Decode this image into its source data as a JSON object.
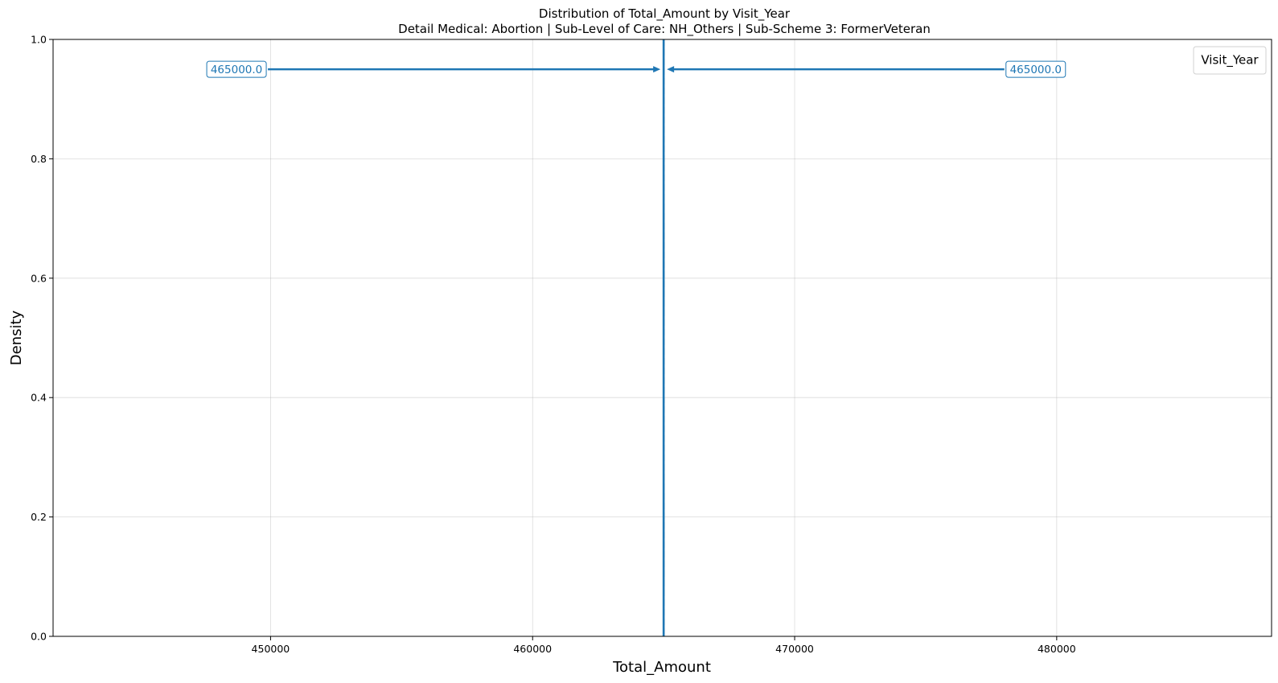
{
  "chart_data": {
    "type": "line",
    "title": "Distribution of Total_Amount by Visit_Year",
    "subtitle": "Detail Medical: Abortion | Sub-Level of Care: NH_Others | Sub-Scheme 3: FormerVeteran",
    "xlabel": "Total_Amount",
    "ylabel": "Density",
    "xlim": [
      441700,
      488200
    ],
    "ylim": [
      0,
      1
    ],
    "x_ticks": [
      450000,
      460000,
      470000,
      480000
    ],
    "x_tick_labels": [
      "450000",
      "460000",
      "470000",
      "480000"
    ],
    "y_ticks": [
      0,
      0.2,
      0.4,
      0.6,
      0.8,
      1.0
    ],
    "y_tick_labels": [
      "0.0",
      "0.2",
      "0.4",
      "0.6",
      "0.8",
      "1.0"
    ],
    "grid": true,
    "legend": {
      "title": "Visit_Year",
      "placement": "top-right",
      "entries": []
    },
    "vertical_lines": [
      {
        "x": 465000,
        "style": "solid",
        "color": "#1f77b4"
      },
      {
        "x": 465000,
        "style": "dashed",
        "color": "#1f77b4"
      }
    ],
    "annotations": [
      {
        "text": "465000.0",
        "value": 465000,
        "label_x": 448700,
        "y": 0.95,
        "color": "#1f77b4"
      },
      {
        "text": "465000.0",
        "value": 465000,
        "label_x": 479200,
        "y": 0.95,
        "color": "#1f77b4"
      }
    ]
  }
}
